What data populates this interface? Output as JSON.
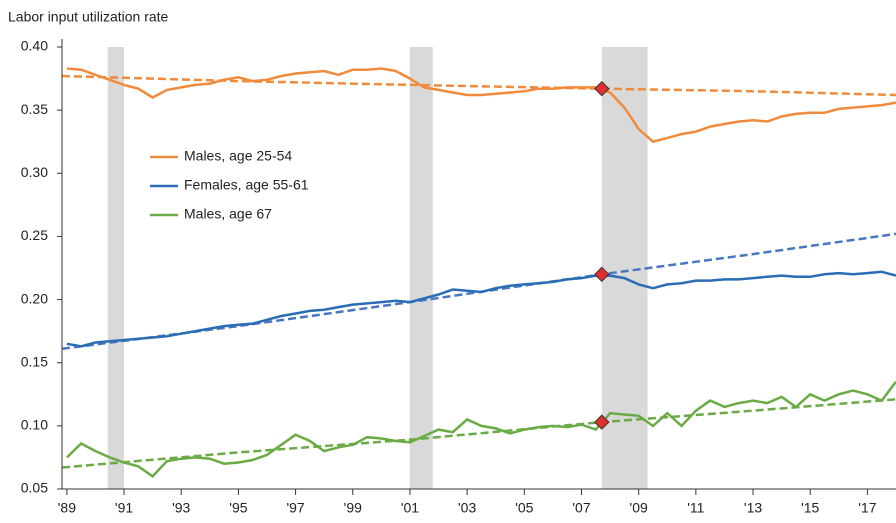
{
  "chart_data": {
    "type": "line",
    "y_label": "Labor input utilization rate",
    "x": [
      1989,
      1989.5,
      1990,
      1990.5,
      1991,
      1991.5,
      1992,
      1992.5,
      1993,
      1993.5,
      1994,
      1994.5,
      1995,
      1995.5,
      1996,
      1996.5,
      1997,
      1997.5,
      1998,
      1998.5,
      1999,
      1999.5,
      2000,
      2000.5,
      2001,
      2001.5,
      2002,
      2002.5,
      2003,
      2003.5,
      2004,
      2004.5,
      2005,
      2005.5,
      2006,
      2006.5,
      2007,
      2007.5,
      2008,
      2008.5,
      2009,
      2009.5,
      2010,
      2010.5,
      2011,
      2011.5,
      2012,
      2012.5,
      2013,
      2013.5,
      2014,
      2014.5,
      2015,
      2015.5,
      2016,
      2016.5,
      2017,
      2017.5,
      2018
    ],
    "series": [
      {
        "name": "Males, age 25-54",
        "color": "#f08a3c",
        "values": [
          0.383,
          0.382,
          0.378,
          0.374,
          0.37,
          0.367,
          0.36,
          0.366,
          0.368,
          0.37,
          0.371,
          0.374,
          0.376,
          0.373,
          0.374,
          0.377,
          0.379,
          0.38,
          0.381,
          0.378,
          0.382,
          0.382,
          0.383,
          0.381,
          0.375,
          0.368,
          0.366,
          0.364,
          0.362,
          0.362,
          0.363,
          0.364,
          0.365,
          0.367,
          0.367,
          0.368,
          0.368,
          0.368,
          0.364,
          0.352,
          0.335,
          0.325,
          0.328,
          0.331,
          0.333,
          0.337,
          0.339,
          0.341,
          0.342,
          0.341,
          0.345,
          0.347,
          0.348,
          0.348,
          0.351,
          0.352,
          0.353,
          0.354,
          0.356
        ]
      },
      {
        "name": "Females, age 55-61",
        "color": "#2a6db5",
        "values": [
          0.165,
          0.163,
          0.166,
          0.167,
          0.168,
          0.169,
          0.17,
          0.171,
          0.173,
          0.175,
          0.177,
          0.179,
          0.18,
          0.181,
          0.184,
          0.187,
          0.189,
          0.191,
          0.192,
          0.194,
          0.196,
          0.197,
          0.198,
          0.199,
          0.198,
          0.201,
          0.204,
          0.208,
          0.207,
          0.206,
          0.209,
          0.211,
          0.212,
          0.213,
          0.214,
          0.216,
          0.217,
          0.219,
          0.219,
          0.217,
          0.212,
          0.209,
          0.212,
          0.213,
          0.215,
          0.215,
          0.216,
          0.216,
          0.217,
          0.218,
          0.219,
          0.218,
          0.218,
          0.22,
          0.221,
          0.22,
          0.221,
          0.222,
          0.219
        ]
      },
      {
        "name": "Males, age 67",
        "color": "#6aab45",
        "values": [
          0.075,
          0.086,
          0.08,
          0.075,
          0.071,
          0.068,
          0.06,
          0.072,
          0.074,
          0.075,
          0.074,
          0.07,
          0.071,
          0.073,
          0.077,
          0.085,
          0.093,
          0.088,
          0.08,
          0.083,
          0.085,
          0.091,
          0.09,
          0.088,
          0.087,
          0.092,
          0.097,
          0.095,
          0.105,
          0.1,
          0.098,
          0.094,
          0.097,
          0.099,
          0.1,
          0.099,
          0.101,
          0.097,
          0.11,
          0.109,
          0.108,
          0.1,
          0.11,
          0.1,
          0.112,
          0.12,
          0.115,
          0.118,
          0.12,
          0.118,
          0.123,
          0.115,
          0.125,
          0.12,
          0.125,
          0.128,
          0.125,
          0.12,
          0.135
        ]
      }
    ],
    "trend_lines": [
      {
        "color": "#f08a3c",
        "x": [
          1988.83,
          1995,
          2001,
          2007.71,
          2013,
          2018
        ],
        "values": [
          0.377,
          0.373,
          0.37,
          0.367,
          0.365,
          0.362
        ]
      },
      {
        "color": "#4a78c0",
        "x": [
          1988.83,
          1995,
          2001,
          2007.71,
          2013,
          2018
        ],
        "values": [
          0.161,
          0.179,
          0.198,
          0.22,
          0.236,
          0.252
        ]
      },
      {
        "color": "#6aab45",
        "x": [
          1988.83,
          1995,
          2001,
          2007.71,
          2013,
          2018
        ],
        "values": [
          0.067,
          0.079,
          0.089,
          0.103,
          0.112,
          0.121
        ]
      }
    ],
    "markers": {
      "x": 2007.71,
      "color": "#e03030",
      "values": [
        0.367,
        0.22,
        0.103
      ]
    },
    "recessions": [
      [
        1990.43,
        1991.0
      ],
      [
        2000.99,
        2001.8
      ],
      [
        2007.71,
        2009.31
      ]
    ],
    "recession_color": "#d9d9d9",
    "xlim": [
      1988.83,
      2018
    ],
    "ylim": [
      0.05,
      0.4
    ],
    "xticks": [
      {
        "value": 1989,
        "label": "'89"
      },
      {
        "value": 1991,
        "label": "'91"
      },
      {
        "value": 1993,
        "label": "'93"
      },
      {
        "value": 1995,
        "label": "'95"
      },
      {
        "value": 1997,
        "label": "'97"
      },
      {
        "value": 1999,
        "label": "'99"
      },
      {
        "value": 2001,
        "label": "'01"
      },
      {
        "value": 2003,
        "label": "'03"
      },
      {
        "value": 2005,
        "label": "'05"
      },
      {
        "value": 2007,
        "label": "'07"
      },
      {
        "value": 2009,
        "label": "'09"
      },
      {
        "value": 2011,
        "label": "'11"
      },
      {
        "value": 2013,
        "label": "'13"
      },
      {
        "value": 2015,
        "label": "'15"
      },
      {
        "value": 2017,
        "label": "'17"
      }
    ],
    "yticks": [
      {
        "value": 0.05,
        "label": "0.05"
      },
      {
        "value": 0.1,
        "label": "0.10"
      },
      {
        "value": 0.15,
        "label": "0.15"
      },
      {
        "value": 0.2,
        "label": "0.20"
      },
      {
        "value": 0.25,
        "label": "0.25"
      },
      {
        "value": 0.3,
        "label": "0.30"
      },
      {
        "value": 0.35,
        "label": "0.35"
      },
      {
        "value": 0.4,
        "label": "0.40"
      }
    ],
    "grid": false
  }
}
